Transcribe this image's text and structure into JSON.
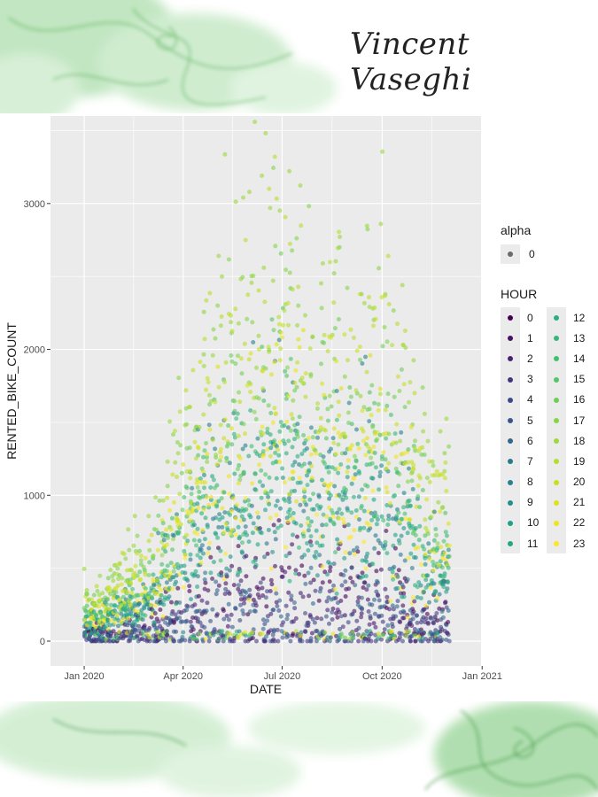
{
  "signature": "Vincent Vaseghi",
  "colors": {
    "panel_bg": "#ebebeb",
    "grid": "#ffffff",
    "smoke_green": "#2e9b2e",
    "viridis": [
      "#440154",
      "#471365",
      "#482374",
      "#453581",
      "#3e4989",
      "#38568b",
      "#31688e",
      "#2b798e",
      "#26828e",
      "#21918c",
      "#1fa187",
      "#22a884",
      "#2ab07f",
      "#35b779",
      "#44bf70",
      "#54c568",
      "#6ece58",
      "#85d54a",
      "#9bd93c",
      "#b5de2b",
      "#c8e020",
      "#dde318",
      "#eee51c",
      "#fde725"
    ]
  },
  "chart_data": {
    "type": "scatter",
    "xlabel": "DATE",
    "ylabel": "RENTED_BIKE_COUNT",
    "x_ticks": [
      "Jan 2020",
      "Apr 2020",
      "Jul 2020",
      "Oct 2020",
      "Jan 2021"
    ],
    "x_range": [
      "2019-12-01",
      "2020-12-31"
    ],
    "y_ticks": [
      0,
      1000,
      2000,
      3000
    ],
    "ylim": [
      -170,
      3600
    ],
    "grid": true,
    "legend_position": "right",
    "legend": {
      "alpha_title": "alpha",
      "alpha_labels": [
        "0"
      ],
      "color_title": "HOUR",
      "hours": [
        "0",
        "1",
        "2",
        "3",
        "4",
        "5",
        "6",
        "7",
        "8",
        "9",
        "10",
        "11",
        "12",
        "13",
        "14",
        "15",
        "16",
        "17",
        "18",
        "19",
        "20",
        "21",
        "22",
        "23"
      ]
    },
    "series_summary": {
      "description": "Daily rented bike counts for each hour of the day, approximately Dec 2019 to Nov 2020",
      "approx_daily_peak_by_month": [
        {
          "date": "2020-01-15",
          "max": 450
        },
        {
          "date": "2020-03-01",
          "max": 900
        },
        {
          "date": "2020-04-15",
          "max": 2400
        },
        {
          "date": "2020-06-15",
          "max": 3400
        },
        {
          "date": "2020-07-01",
          "max": 3560
        },
        {
          "date": "2020-08-01",
          "max": 2800
        },
        {
          "date": "2020-09-01",
          "max": 3280
        },
        {
          "date": "2020-10-15",
          "max": 2620
        },
        {
          "date": "2020-11-15",
          "max": 1500
        }
      ]
    }
  }
}
